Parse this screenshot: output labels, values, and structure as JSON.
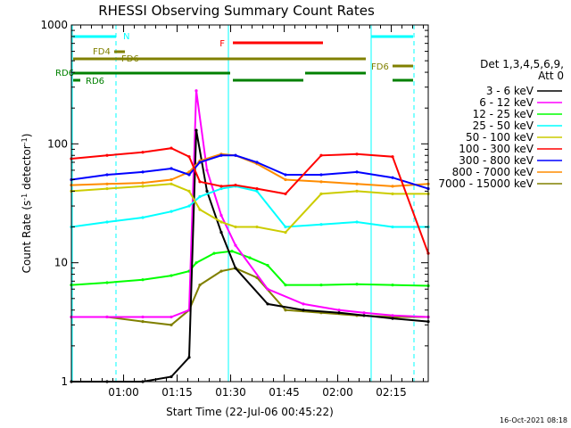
{
  "chart_data": {
    "type": "line",
    "title": "RHESSI Observing Summary Count Rates",
    "xlabel": "Start Time (22-Jul-06 00:45:22)",
    "ylabel": "Count Rate (s",
    "ylabel_sup": "-1",
    "ylabel_end": " detector",
    "ylabel_tail": ")",
    "y_scale": "log",
    "ylim": [
      1,
      1000
    ],
    "y_ticks": [
      1,
      10,
      100,
      1000
    ],
    "y_tick_labels": [
      "1",
      "10",
      "100",
      "1000"
    ],
    "x_unit": "minutes after 00:45:22",
    "xlim": [
      0,
      100
    ],
    "x_ticks": [
      14.63,
      29.63,
      44.63,
      59.63,
      74.63,
      89.63
    ],
    "x_tick_labels": [
      "01:00",
      "01:15",
      "01:30",
      "01:45",
      "02:00",
      "02:15"
    ],
    "legend": {
      "placement": "right",
      "header": [
        "Det 1,3,4,5,6,9,",
        "Att 0"
      ]
    },
    "series": [
      {
        "name": "3 - 6 keV",
        "color": "#000000",
        "x": [
          0,
          10,
          20,
          28,
          33,
          35,
          38,
          42,
          46,
          55,
          65,
          75,
          82,
          90,
          100
        ],
        "values": [
          1.0,
          1.0,
          1.0,
          1.1,
          1.6,
          130,
          40,
          18,
          9,
          4.5,
          4.0,
          3.8,
          3.6,
          3.4,
          3.2
        ]
      },
      {
        "name": "6 - 12 keV",
        "color": "#ff00ff",
        "x": [
          0,
          10,
          20,
          28,
          33,
          35,
          38,
          42,
          46,
          55,
          65,
          75,
          82,
          90,
          100
        ],
        "values": [
          3.5,
          3.5,
          3.5,
          3.5,
          4,
          280,
          60,
          25,
          14,
          6,
          4.5,
          4.0,
          3.8,
          3.6,
          3.5
        ]
      },
      {
        "name": "12 - 25 keV",
        "color": "#00ff00",
        "x": [
          0,
          10,
          20,
          28,
          33,
          35,
          40,
          45,
          50,
          55,
          60,
          70,
          80,
          90,
          100
        ],
        "values": [
          6.5,
          6.8,
          7.2,
          7.8,
          8.5,
          10,
          12,
          12.5,
          11,
          9.5,
          6.5,
          6.5,
          6.6,
          6.5,
          6.4
        ]
      },
      {
        "name": "25 - 50 keV",
        "color": "#00ffff",
        "x": [
          0,
          10,
          20,
          28,
          33,
          36,
          42,
          46,
          52,
          60,
          70,
          80,
          90,
          100
        ],
        "values": [
          20,
          22,
          24,
          27,
          30,
          36,
          42,
          44,
          40,
          20,
          21,
          22,
          20,
          20
        ]
      },
      {
        "name": "50 - 100 keV",
        "color": "#cccc00",
        "x": [
          0,
          10,
          20,
          28,
          33,
          36,
          42,
          46,
          52,
          60,
          70,
          80,
          90,
          100
        ],
        "values": [
          40,
          42,
          44,
          46,
          40,
          28,
          22,
          20,
          20,
          18,
          38,
          40,
          38,
          38
        ]
      },
      {
        "name": "100 - 300 keV",
        "color": "#ff0000",
        "x": [
          0,
          10,
          20,
          28,
          33,
          36,
          42,
          46,
          52,
          60,
          70,
          80,
          90,
          100
        ],
        "values": [
          75,
          80,
          85,
          92,
          78,
          48,
          44,
          45,
          42,
          38,
          80,
          82,
          78,
          12
        ]
      },
      {
        "name": "300 - 800 keV",
        "color": "#0000ff",
        "x": [
          0,
          10,
          20,
          28,
          33,
          36,
          42,
          46,
          52,
          60,
          70,
          80,
          90,
          100
        ],
        "values": [
          50,
          55,
          58,
          62,
          55,
          70,
          80,
          80,
          70,
          55,
          55,
          58,
          52,
          42
        ]
      },
      {
        "name": "800 - 7000 keV",
        "color": "#ff8c00",
        "x": [
          0,
          10,
          20,
          28,
          33,
          36,
          42,
          46,
          52,
          60,
          70,
          80,
          90,
          100
        ],
        "values": [
          45,
          46,
          47,
          50,
          58,
          72,
          82,
          80,
          68,
          50,
          48,
          46,
          44,
          46
        ]
      },
      {
        "name": "7000 - 15000 keV",
        "color": "#808000",
        "x": [
          0,
          10,
          20,
          28,
          33,
          36,
          42,
          46,
          52,
          60,
          70,
          80,
          90,
          100
        ],
        "values": [
          3.5,
          3.5,
          3.2,
          3.0,
          4.0,
          6.5,
          8.5,
          9.0,
          7.5,
          4.0,
          3.8,
          3.6,
          3.5,
          3.5
        ]
      }
    ],
    "flags": [
      {
        "name": "N",
        "color": "#00ffff"
      },
      {
        "name": "F",
        "color": "#ff0000"
      },
      {
        "name": "FD4",
        "color": "#808000"
      },
      {
        "name": "FD6",
        "color": "#808000"
      },
      {
        "name": "FD6",
        "color": "#808000"
      },
      {
        "name": "RD6",
        "color": "#008000"
      },
      {
        "name": "RD6",
        "color": "#008000"
      }
    ]
  },
  "footer": {
    "date_stamp": "16-Oct-2021 08:18"
  }
}
